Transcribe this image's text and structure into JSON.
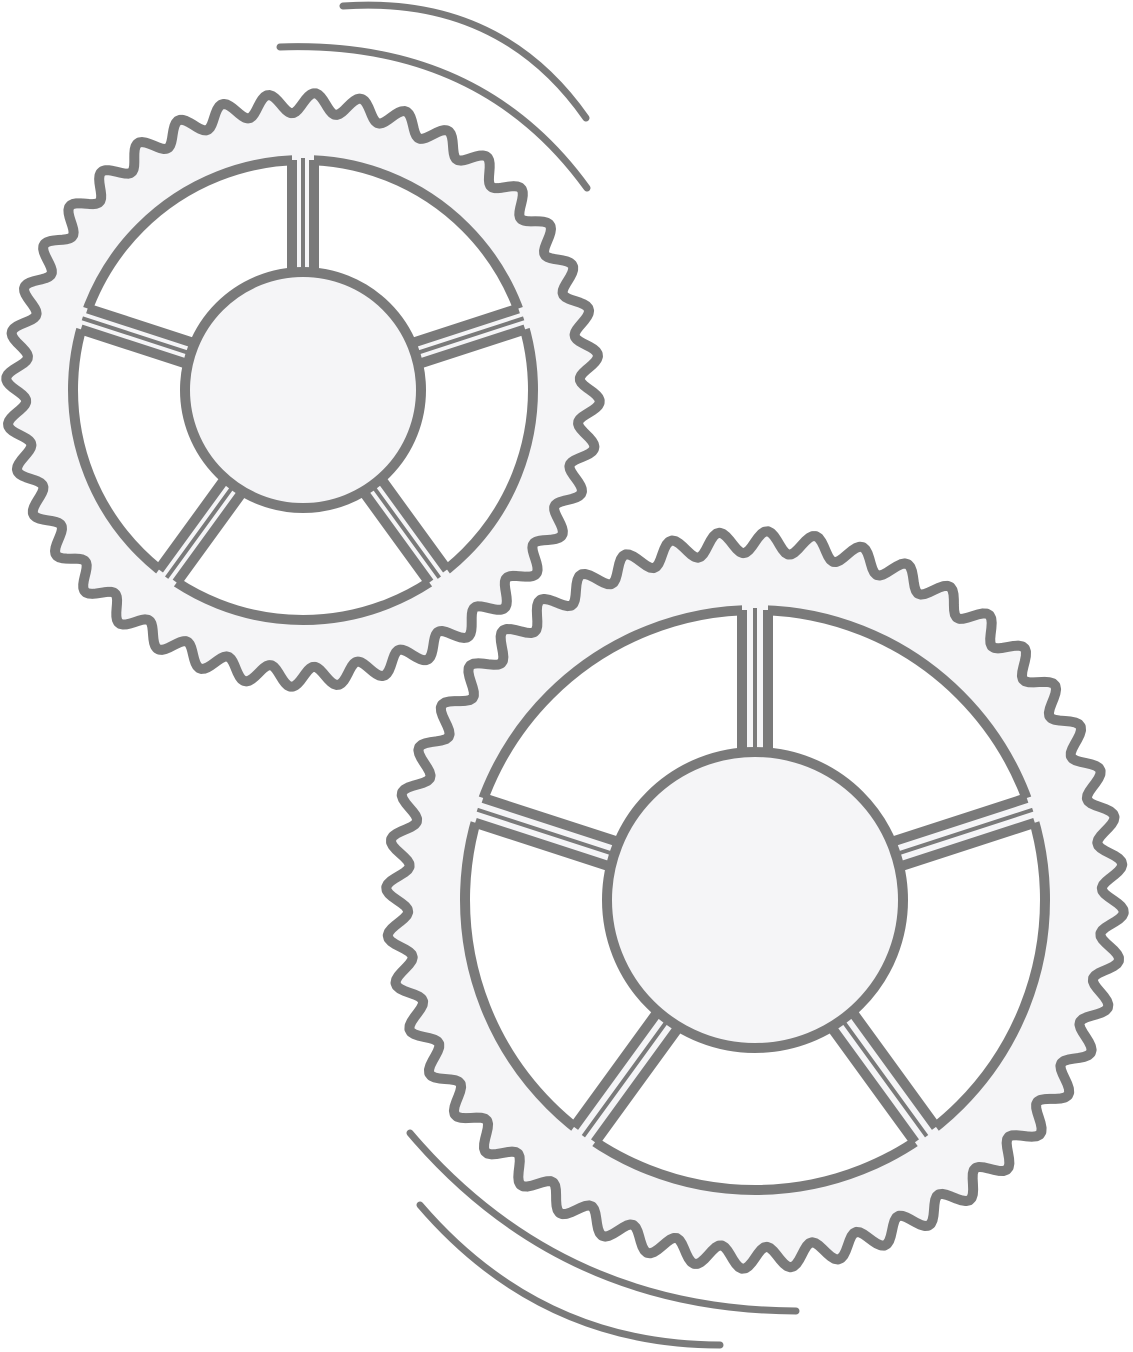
{
  "colors": {
    "stroke": "#7a7a7a",
    "fill": "#f5f5f7",
    "background": "#ffffff"
  },
  "illustration": {
    "icon": "rotating-gears-icon",
    "gears": [
      {
        "name": "small-gear",
        "teeth": 40,
        "spokes": 5
      },
      {
        "name": "large-gear",
        "teeth": 48,
        "spokes": 5
      }
    ],
    "motion_arcs": 4
  }
}
